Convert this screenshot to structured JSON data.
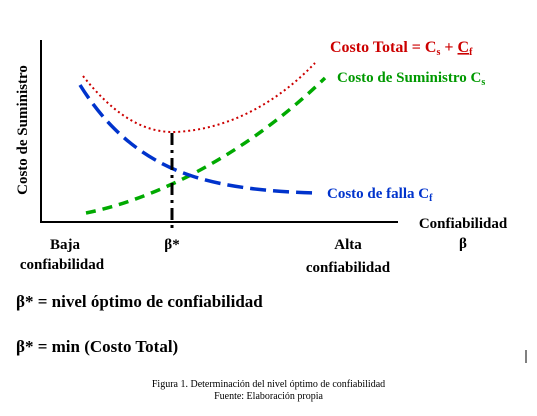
{
  "diagram": {
    "y_axis_label": "Costo de Suministro",
    "x_axis_label_line1": "Confiabilidad",
    "x_axis_label_line2": "β",
    "low_label_line1": "Baja",
    "low_label_line2": "confiabilidad",
    "beta_star_label": "β*",
    "high_label_line1": "Alta",
    "high_label_line2": "confiabilidad",
    "total_cost": {
      "text": "Costo Total = ",
      "c1": "C",
      "c1_sub": "s",
      "plus": " + ",
      "c2": "C",
      "c2_sub": "f",
      "color": "#cc0000"
    },
    "supply_cost": {
      "text": "Costo de Suministro ",
      "c": "C",
      "c_sub": "s",
      "color": "#009900"
    },
    "failure_cost": {
      "text": "Costo de falla ",
      "c": "C",
      "c_sub": "f",
      "color": "#0033cc"
    }
  },
  "equations": {
    "line1": "β* = nivel óptimo de confiabilidad",
    "line2": "β* = min (Costo Total)"
  },
  "caption": {
    "line1": "Figura 1. Determinación del nivel óptimo de confiabilidad",
    "line2": "Fuente: Elaboración propia"
  }
}
